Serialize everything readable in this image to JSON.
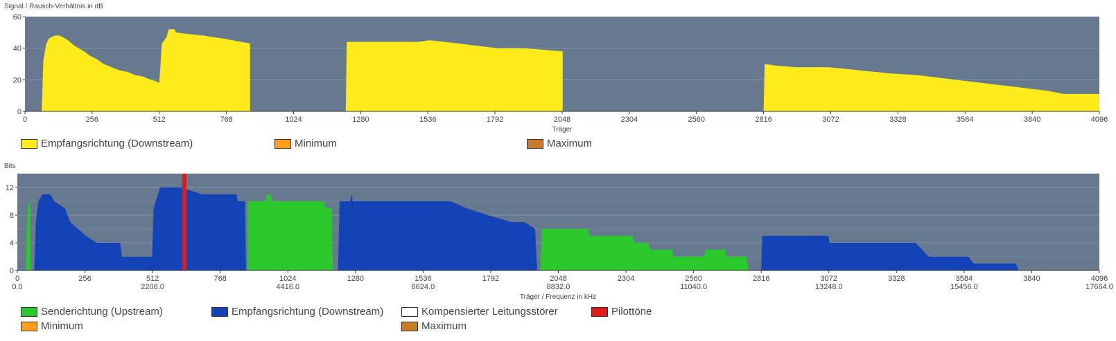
{
  "colors": {
    "plot_bg": "#66798f",
    "snr_fill": "#ffea1a",
    "upstream": "#2ac82a",
    "downstream": "#1443b8",
    "pilot": "#e01a1a",
    "compensated": "#ffffff",
    "minimum": "#ff9f1a",
    "maximum": "#c87d2a"
  },
  "snr": {
    "ylabel": "Signal / Rausch-Verhältnis in dB",
    "xlabel": "Träger",
    "legend": {
      "downstream": "Empfangsrichtung (Downstream)",
      "minimum": "Minimum",
      "maximum": "Maximum"
    }
  },
  "bits": {
    "ylabel": "Bits",
    "xlabel": "Träger / Frequenz in kHz",
    "legend": {
      "upstream": "Senderichtung (Upstream)",
      "downstream": "Empfangsrichtung (Downstream)",
      "compensated": "Kompensierter Leitungsstörer",
      "pilot": "Pilottöne",
      "minimum": "Minimum",
      "maximum": "Maximum"
    }
  },
  "chart_data": [
    {
      "type": "area",
      "ylabel": "Signal / Rausch-Verhältnis in dB",
      "xlabel": "Träger",
      "xlim": [
        0,
        4096
      ],
      "ylim": [
        0,
        60
      ],
      "xticks": [
        0,
        256,
        512,
        768,
        1024,
        1280,
        1536,
        1792,
        2048,
        2304,
        2560,
        2816,
        3072,
        3328,
        3584,
        3840,
        4096
      ],
      "yticks": [
        0,
        20,
        40,
        60
      ],
      "grid": true,
      "legend_position": "bottom",
      "series": [
        {
          "name": "Empfangsrichtung (Downstream)",
          "segments": [
            [
              [
                64,
                0
              ],
              [
                70,
                32
              ],
              [
                80,
                42
              ],
              [
                90,
                46
              ],
              [
                100,
                47
              ],
              [
                115,
                48
              ],
              [
                130,
                48
              ],
              [
                145,
                47
              ],
              [
                165,
                45
              ],
              [
                185,
                42
              ],
              [
                205,
                40
              ],
              [
                225,
                38
              ],
              [
                250,
                35
              ],
              [
                275,
                33
              ],
              [
                300,
                30
              ],
              [
                330,
                28
              ],
              [
                360,
                26
              ],
              [
                390,
                25
              ],
              [
                420,
                23
              ],
              [
                450,
                22
              ],
              [
                480,
                20
              ],
              [
                500,
                19
              ],
              [
                512,
                18
              ],
              [
                512,
                18
              ],
              [
                522,
                43
              ],
              [
                540,
                47
              ],
              [
                548,
                52
              ],
              [
                570,
                52
              ],
              [
                575,
                50
              ],
              [
                620,
                49
              ],
              [
                680,
                48
              ],
              [
                720,
                47
              ],
              [
                760,
                46
              ],
              [
                792,
                45
              ],
              [
                858,
                43
              ],
              [
                858,
                0
              ]
            ],
            [
              [
                1223,
                0
              ],
              [
                1227,
                44
              ],
              [
                1400,
                44
              ],
              [
                1450,
                44
              ],
              [
                1500,
                44
              ],
              [
                1540,
                45
              ],
              [
                1600,
                44
              ],
              [
                1650,
                43
              ],
              [
                1700,
                42
              ],
              [
                1750,
                41
              ],
              [
                1800,
                40
              ],
              [
                1900,
                40
              ],
              [
                2050,
                38
              ],
              [
                2050,
                0
              ]
            ],
            [
              [
                2816,
                0
              ],
              [
                2820,
                30
              ],
              [
                2860,
                29
              ],
              [
                2940,
                28
              ],
              [
                3000,
                28
              ],
              [
                3060,
                28
              ],
              [
                3120,
                27
              ],
              [
                3180,
                26
              ],
              [
                3240,
                25
              ],
              [
                3300,
                24
              ],
              [
                3400,
                23
              ],
              [
                3500,
                21
              ],
              [
                3600,
                19
              ],
              [
                3700,
                17
              ],
              [
                3800,
                15
              ],
              [
                3900,
                13
              ],
              [
                3960,
                11
              ],
              [
                4096,
                11
              ],
              [
                4096,
                0
              ]
            ]
          ]
        }
      ]
    },
    {
      "type": "area",
      "ylabel": "Bits",
      "xlabel": "Träger / Frequenz in kHz",
      "xlim": [
        0,
        4096
      ],
      "ylim": [
        0,
        14
      ],
      "xticks": [
        0,
        256,
        512,
        768,
        1024,
        1280,
        1536,
        1792,
        2048,
        2304,
        2560,
        2816,
        3072,
        3328,
        3584,
        3840,
        4096
      ],
      "xticks_freq": [
        "0.0",
        "2208.0",
        "4416.0",
        "6624.0",
        "8832.0",
        "11040.0",
        "13248.0",
        "15456.0",
        "17664.0"
      ],
      "yticks": [
        0,
        4,
        8,
        12
      ],
      "grid": true,
      "legend_position": "bottom",
      "series": [
        {
          "name": "Senderichtung (Upstream)",
          "segments": [
            [
              [
                32,
                0
              ],
              [
                36,
                6
              ],
              [
                40,
                9
              ],
              [
                44,
                10
              ],
              [
                48,
                10
              ],
              [
                51,
                0
              ]
            ],
            [
              [
                871,
                0
              ],
              [
                871,
                10
              ],
              [
                940,
                10
              ],
              [
                945,
                11
              ],
              [
                960,
                11
              ],
              [
                965,
                10
              ],
              [
                1160,
                10
              ],
              [
                1170,
                9
              ],
              [
                1190,
                9
              ],
              [
                1195,
                0
              ]
            ],
            [
              [
                1980,
                0
              ],
              [
                1985,
                6
              ],
              [
                2160,
                6
              ],
              [
                2165,
                5
              ],
              [
                2330,
                5
              ],
              [
                2335,
                4
              ],
              [
                2390,
                4
              ],
              [
                2395,
                3
              ],
              [
                2480,
                3
              ],
              [
                2485,
                2
              ],
              [
                2600,
                2
              ],
              [
                2605,
                3
              ],
              [
                2680,
                3
              ],
              [
                2685,
                2
              ],
              [
                2760,
                2
              ],
              [
                2768,
                0
              ]
            ]
          ]
        },
        {
          "name": "Empfangsrichtung (Downstream)",
          "segments": [
            [
              [
                64,
                0
              ],
              [
                70,
                7
              ],
              [
                80,
                10
              ],
              [
                95,
                11
              ],
              [
                125,
                11
              ],
              [
                140,
                10
              ],
              [
                180,
                9
              ],
              [
                200,
                7
              ],
              [
                230,
                6
              ],
              [
                260,
                5
              ],
              [
                300,
                4
              ],
              [
                390,
                4
              ],
              [
                396,
                2
              ],
              [
                510,
                2
              ],
              [
                516,
                9
              ],
              [
                540,
                12
              ],
              [
                560,
                12
              ],
              [
                620,
                12
              ],
              [
                700,
                11
              ],
              [
                760,
                11
              ],
              [
                830,
                11
              ],
              [
                835,
                10
              ],
              [
                862,
                10
              ],
              [
                866,
                0
              ]
            ],
            [
              [
                1214,
                0
              ],
              [
                1220,
                10
              ],
              [
                1260,
                10
              ],
              [
                1265,
                11
              ],
              [
                1270,
                10
              ],
              [
                1400,
                10
              ],
              [
                1500,
                10
              ],
              [
                1640,
                10
              ],
              [
                1700,
                9
              ],
              [
                1780,
                8
              ],
              [
                1870,
                7
              ],
              [
                1920,
                7
              ],
              [
                1960,
                6
              ],
              [
                1968,
                0
              ]
            ],
            [
              [
                2816,
                0
              ],
              [
                2820,
                5
              ],
              [
                3070,
                5
              ],
              [
                3075,
                4
              ],
              [
                3400,
                4
              ],
              [
                3450,
                2
              ],
              [
                3600,
                2
              ],
              [
                3620,
                1
              ],
              [
                3780,
                1
              ],
              [
                3790,
                0
              ]
            ]
          ]
        },
        {
          "name": "Pilottöne",
          "carrier": 632,
          "value": 14
        }
      ]
    }
  ]
}
